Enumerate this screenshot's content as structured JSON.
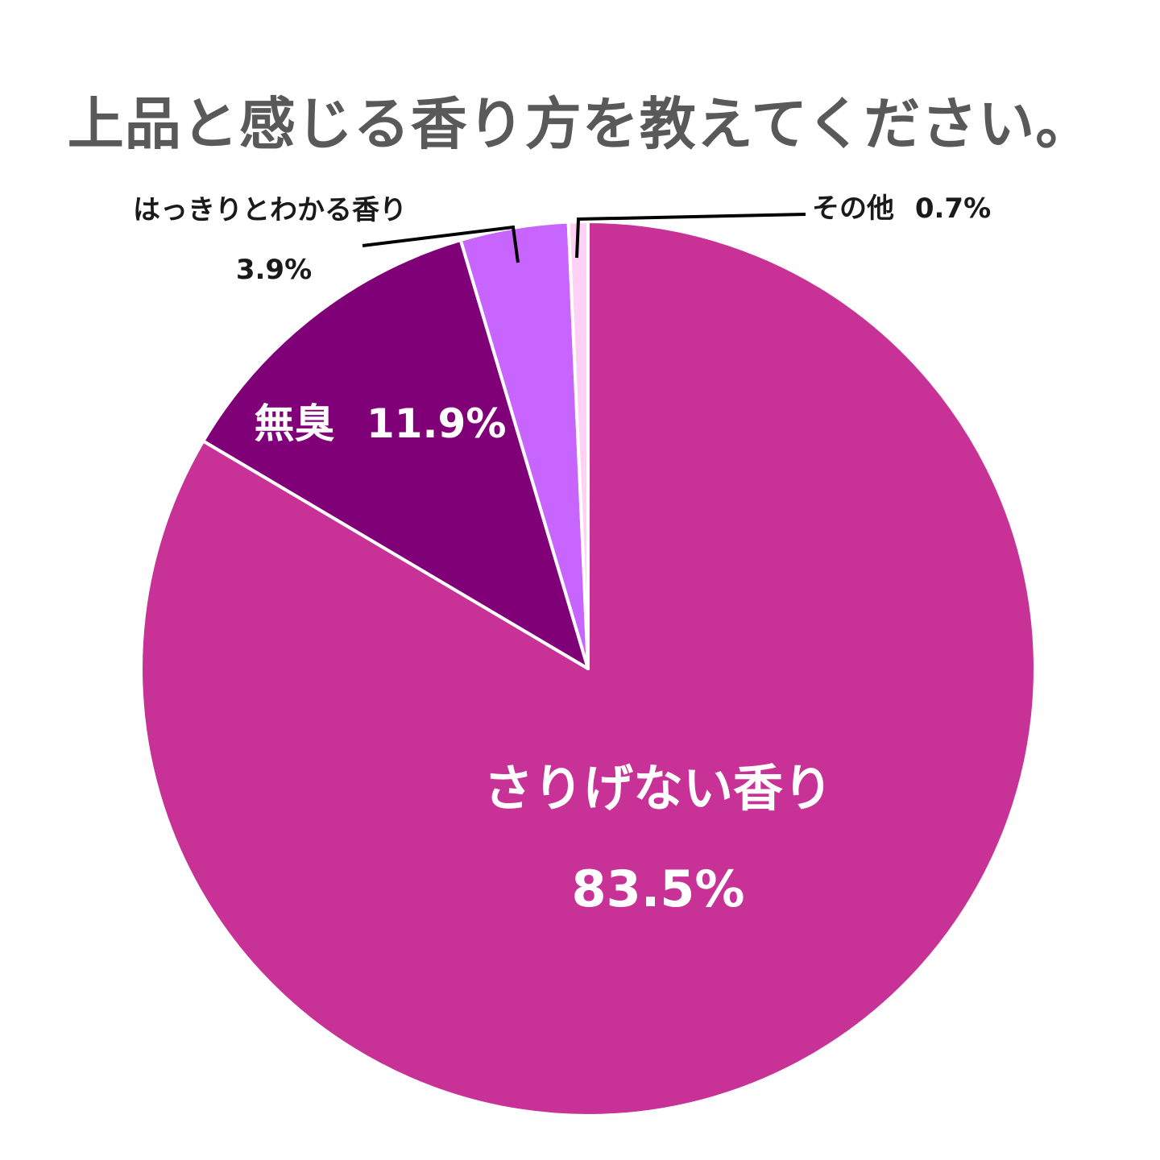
{
  "chart_data": {
    "type": "pie",
    "title": "上品と感じる香り方を教えてください。",
    "start_angle": "12 o'clock",
    "direction": "clockwise",
    "slices": [
      {
        "label": "さりげない香り",
        "value": 83.5,
        "value_label": "83.5%",
        "color": "#c83296"
      },
      {
        "label": "無臭",
        "value": 11.9,
        "value_label": "11.9%",
        "color": "#800078"
      },
      {
        "label": "はっきりとわかる香り",
        "value": 3.9,
        "value_label": "3.9%",
        "color": "#c864ff"
      },
      {
        "label": "その他",
        "value": 0.7,
        "value_label": "0.7%",
        "color": "#ffd2f5"
      }
    ]
  }
}
